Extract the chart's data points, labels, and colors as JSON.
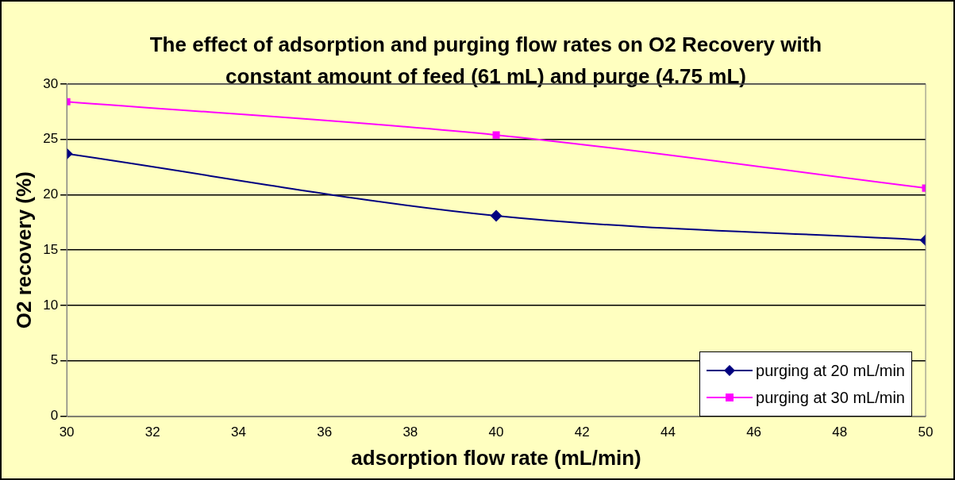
{
  "chart_data": {
    "type": "line",
    "title": "The effect of adsorption and purging flow rates on O2 Recovery with constant amount of feed (61 mL) and purge (4.75 mL)",
    "xlabel": "adsorption flow rate (mL/min)",
    "ylabel": "O2 recovery (%)",
    "x": [
      30,
      40,
      50
    ],
    "series": [
      {
        "name": "purging at 20 mL/min",
        "color": "#000080",
        "values": [
          23.7,
          18.1,
          15.9
        ],
        "marker": "diamond"
      },
      {
        "name": "purging at 30 mL/min",
        "color": "#ff00ff",
        "values": [
          28.4,
          25.4,
          20.6
        ],
        "marker": "square"
      }
    ],
    "xlim": [
      30,
      50
    ],
    "xticks": [
      30,
      32,
      34,
      36,
      38,
      40,
      42,
      44,
      46,
      48,
      50
    ],
    "ylim": [
      0,
      30
    ],
    "yticks": [
      0,
      5,
      10,
      15,
      20,
      25,
      30
    ],
    "grid": "y",
    "legend": "bottom right"
  }
}
